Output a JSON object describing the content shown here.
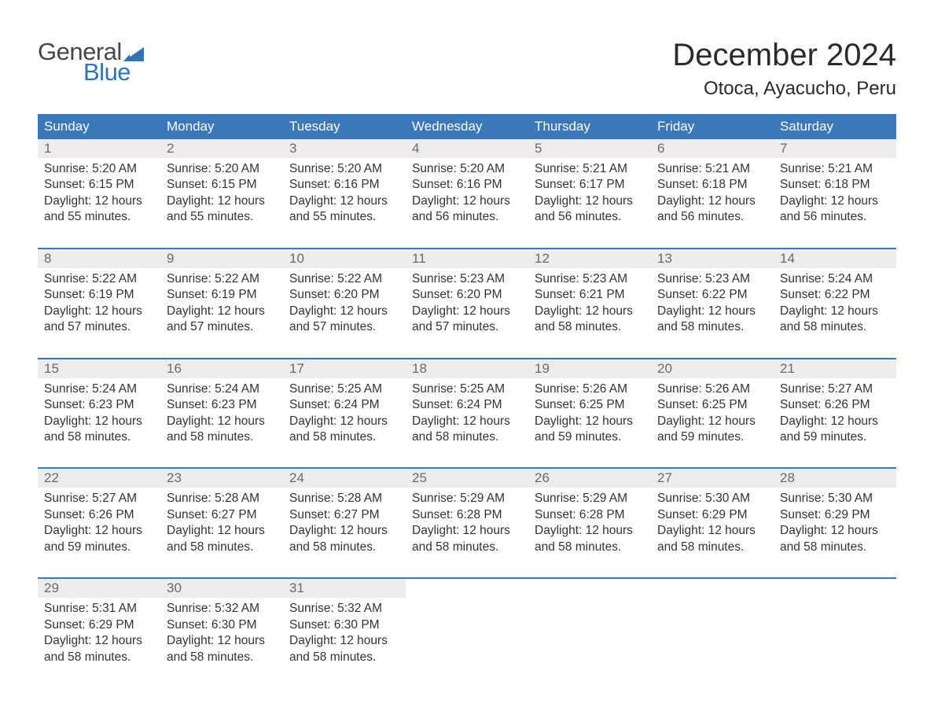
{
  "logo": {
    "word1": "General",
    "word2": "Blue",
    "word1_color": "#444848",
    "word2_color": "#2f74b5",
    "flag_color": "#2f74b5"
  },
  "header": {
    "month_title": "December 2024",
    "location": "Otoca, Ayacucho, Peru"
  },
  "style": {
    "header_bg": "#3a78b9",
    "header_fg": "#ffffff",
    "daynum_bg": "#ececec",
    "daynum_fg": "#6a6a6a",
    "rule_color": "#3a78b9",
    "body_text": "#333333",
    "page_bg": "#ffffff",
    "header_fontsize": 17,
    "daynum_fontsize": 17,
    "cell_fontsize": 15.5,
    "title_fontsize": 40,
    "location_fontsize": 24
  },
  "weekdays": [
    "Sunday",
    "Monday",
    "Tuesday",
    "Wednesday",
    "Thursday",
    "Friday",
    "Saturday"
  ],
  "labels": {
    "sunrise": "Sunrise: ",
    "sunset": "Sunset: ",
    "daylight": "Daylight: "
  },
  "days": [
    {
      "n": "1",
      "sunrise": "5:20 AM",
      "sunset": "6:15 PM",
      "daylight": "12 hours and 55 minutes."
    },
    {
      "n": "2",
      "sunrise": "5:20 AM",
      "sunset": "6:15 PM",
      "daylight": "12 hours and 55 minutes."
    },
    {
      "n": "3",
      "sunrise": "5:20 AM",
      "sunset": "6:16 PM",
      "daylight": "12 hours and 55 minutes."
    },
    {
      "n": "4",
      "sunrise": "5:20 AM",
      "sunset": "6:16 PM",
      "daylight": "12 hours and 56 minutes."
    },
    {
      "n": "5",
      "sunrise": "5:21 AM",
      "sunset": "6:17 PM",
      "daylight": "12 hours and 56 minutes."
    },
    {
      "n": "6",
      "sunrise": "5:21 AM",
      "sunset": "6:18 PM",
      "daylight": "12 hours and 56 minutes."
    },
    {
      "n": "7",
      "sunrise": "5:21 AM",
      "sunset": "6:18 PM",
      "daylight": "12 hours and 56 minutes."
    },
    {
      "n": "8",
      "sunrise": "5:22 AM",
      "sunset": "6:19 PM",
      "daylight": "12 hours and 57 minutes."
    },
    {
      "n": "9",
      "sunrise": "5:22 AM",
      "sunset": "6:19 PM",
      "daylight": "12 hours and 57 minutes."
    },
    {
      "n": "10",
      "sunrise": "5:22 AM",
      "sunset": "6:20 PM",
      "daylight": "12 hours and 57 minutes."
    },
    {
      "n": "11",
      "sunrise": "5:23 AM",
      "sunset": "6:20 PM",
      "daylight": "12 hours and 57 minutes."
    },
    {
      "n": "12",
      "sunrise": "5:23 AM",
      "sunset": "6:21 PM",
      "daylight": "12 hours and 58 minutes."
    },
    {
      "n": "13",
      "sunrise": "5:23 AM",
      "sunset": "6:22 PM",
      "daylight": "12 hours and 58 minutes."
    },
    {
      "n": "14",
      "sunrise": "5:24 AM",
      "sunset": "6:22 PM",
      "daylight": "12 hours and 58 minutes."
    },
    {
      "n": "15",
      "sunrise": "5:24 AM",
      "sunset": "6:23 PM",
      "daylight": "12 hours and 58 minutes."
    },
    {
      "n": "16",
      "sunrise": "5:24 AM",
      "sunset": "6:23 PM",
      "daylight": "12 hours and 58 minutes."
    },
    {
      "n": "17",
      "sunrise": "5:25 AM",
      "sunset": "6:24 PM",
      "daylight": "12 hours and 58 minutes."
    },
    {
      "n": "18",
      "sunrise": "5:25 AM",
      "sunset": "6:24 PM",
      "daylight": "12 hours and 58 minutes."
    },
    {
      "n": "19",
      "sunrise": "5:26 AM",
      "sunset": "6:25 PM",
      "daylight": "12 hours and 59 minutes."
    },
    {
      "n": "20",
      "sunrise": "5:26 AM",
      "sunset": "6:25 PM",
      "daylight": "12 hours and 59 minutes."
    },
    {
      "n": "21",
      "sunrise": "5:27 AM",
      "sunset": "6:26 PM",
      "daylight": "12 hours and 59 minutes."
    },
    {
      "n": "22",
      "sunrise": "5:27 AM",
      "sunset": "6:26 PM",
      "daylight": "12 hours and 59 minutes."
    },
    {
      "n": "23",
      "sunrise": "5:28 AM",
      "sunset": "6:27 PM",
      "daylight": "12 hours and 58 minutes."
    },
    {
      "n": "24",
      "sunrise": "5:28 AM",
      "sunset": "6:27 PM",
      "daylight": "12 hours and 58 minutes."
    },
    {
      "n": "25",
      "sunrise": "5:29 AM",
      "sunset": "6:28 PM",
      "daylight": "12 hours and 58 minutes."
    },
    {
      "n": "26",
      "sunrise": "5:29 AM",
      "sunset": "6:28 PM",
      "daylight": "12 hours and 58 minutes."
    },
    {
      "n": "27",
      "sunrise": "5:30 AM",
      "sunset": "6:29 PM",
      "daylight": "12 hours and 58 minutes."
    },
    {
      "n": "28",
      "sunrise": "5:30 AM",
      "sunset": "6:29 PM",
      "daylight": "12 hours and 58 minutes."
    },
    {
      "n": "29",
      "sunrise": "5:31 AM",
      "sunset": "6:29 PM",
      "daylight": "12 hours and 58 minutes."
    },
    {
      "n": "30",
      "sunrise": "5:32 AM",
      "sunset": "6:30 PM",
      "daylight": "12 hours and 58 minutes."
    },
    {
      "n": "31",
      "sunrise": "5:32 AM",
      "sunset": "6:30 PM",
      "daylight": "12 hours and 58 minutes."
    }
  ],
  "grid": {
    "weeks": 5,
    "first_weekday_index": 0,
    "trailing_empty": 4
  }
}
